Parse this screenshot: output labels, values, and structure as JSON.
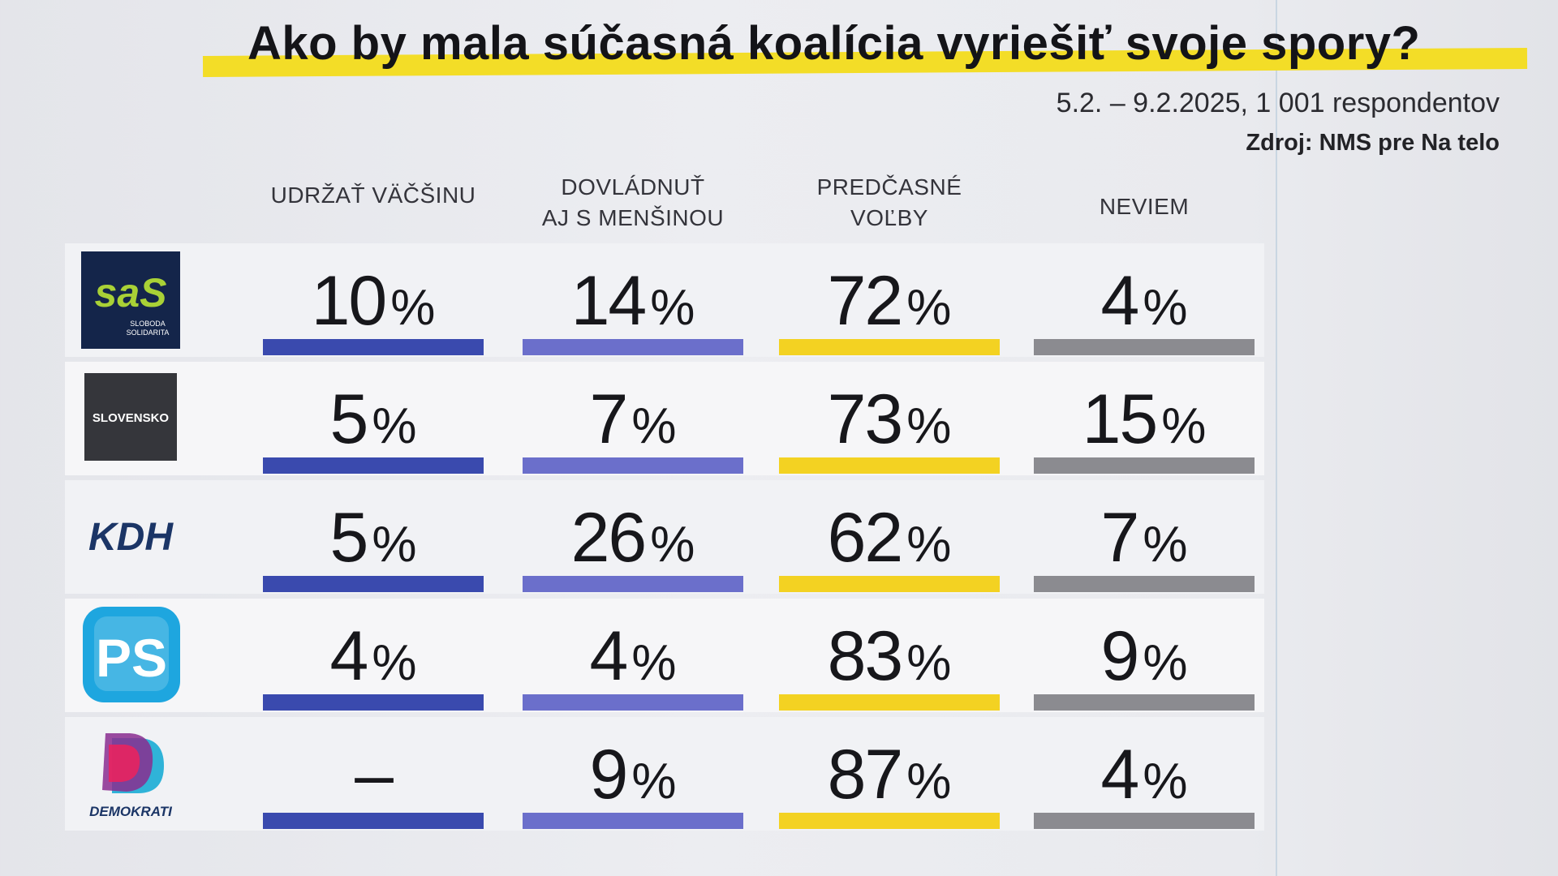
{
  "title": "Ako by mala súčasná koalícia vyriešiť svoje spory?",
  "subtitle": "5.2. – 9.2.2025, 1 001 respondentov",
  "source": "Zdroj: NMS pre Na telo",
  "colors": {
    "col_0": "#3a4aae",
    "col_1": "#6b6fcb",
    "col_2": "#f3d222",
    "col_3": "#8b8b90",
    "highlight": "#f3dd27"
  },
  "columns": [
    {
      "line1": "UDRŽAŤ VÄČŠINU",
      "line2": ""
    },
    {
      "line1": "DOVLÁDNUŤ",
      "line2": "AJ S MENŠINOU"
    },
    {
      "line1": "PREDČASNÉ",
      "line2": "VOĽBY"
    },
    {
      "line1": "NEVIEM",
      "line2": ""
    }
  ],
  "parties": [
    {
      "logo_icon": "sas-logo",
      "logo_main": "saS",
      "logo_sub1": "SLOBODA",
      "logo_sub2": "SOLIDARITA"
    },
    {
      "logo_icon": "slovensko-logo",
      "logo_main": "SLOVENSKO"
    },
    {
      "logo_icon": "kdh-logo",
      "logo_main": "KDH"
    },
    {
      "logo_icon": "ps-logo",
      "logo_main": "PS"
    },
    {
      "logo_icon": "demokrati-logo",
      "logo_main": "DEMOKRATI"
    }
  ],
  "chart_data": {
    "type": "table",
    "title": "Ako by mala súčasná koalícia vyriešiť svoje spory?",
    "columns": [
      "UDRŽAŤ VÄČŠINU",
      "DOVLÁDNUŤ AJ S MENŠINOU",
      "PREDČASNÉ VOĽBY",
      "NEVIEM"
    ],
    "rows": [
      "SaS",
      "SLOVENSKO",
      "KDH",
      "PS",
      "DEMOKRATI"
    ],
    "values": [
      [
        "10",
        "14",
        "72",
        "4"
      ],
      [
        "5",
        "7",
        "73",
        "15"
      ],
      [
        "5",
        "26",
        "62",
        "7"
      ],
      [
        "4",
        "4",
        "83",
        "9"
      ],
      [
        "–",
        "9",
        "87",
        "4"
      ]
    ],
    "unit": "%"
  }
}
